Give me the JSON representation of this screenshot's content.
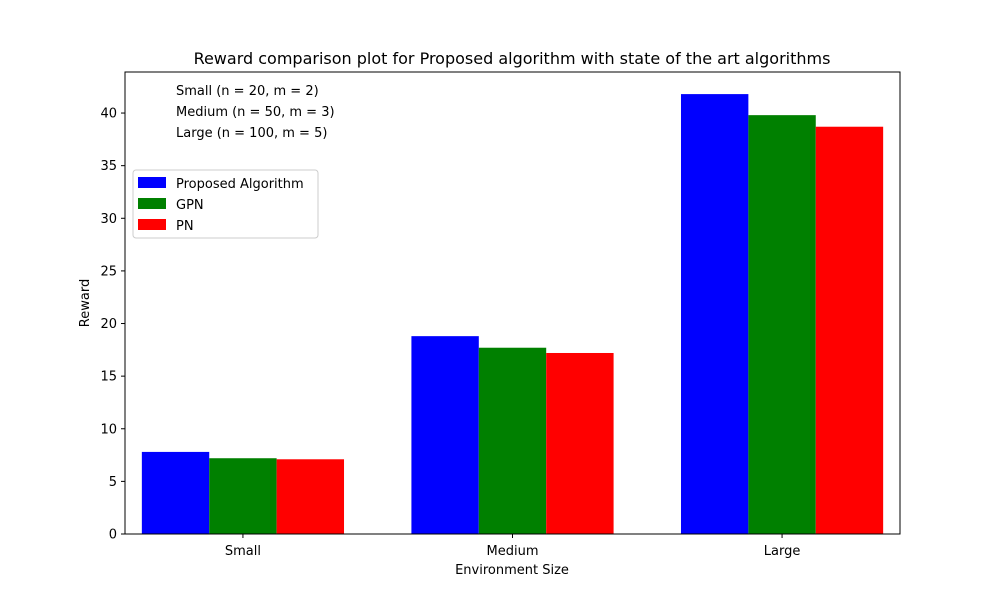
{
  "chart_data": {
    "type": "bar",
    "title": "Reward comparison plot for Proposed algorithm with state of the art algorithms",
    "xlabel": "Environment Size",
    "ylabel": "Reward",
    "categories": [
      "Small",
      "Medium",
      "Large"
    ],
    "series": [
      {
        "name": "Proposed Algorithm",
        "color": "#0000ff",
        "values": [
          7.8,
          18.8,
          41.8
        ]
      },
      {
        "name": "GPN",
        "color": "#008000",
        "values": [
          7.2,
          17.7,
          39.8
        ]
      },
      {
        "name": "PN",
        "color": "#ff0000",
        "values": [
          7.1,
          17.2,
          38.7
        ]
      }
    ],
    "ylim": [
      0,
      43.9
    ],
    "yticks": [
      0,
      5,
      10,
      15,
      20,
      25,
      30,
      35,
      40
    ],
    "grid": false,
    "legend_position": "upper-left",
    "annotations": [
      "Small (n = 20, m = 2)",
      "Medium (n = 50, m = 3)",
      "Large (n = 100, m = 5)"
    ]
  }
}
